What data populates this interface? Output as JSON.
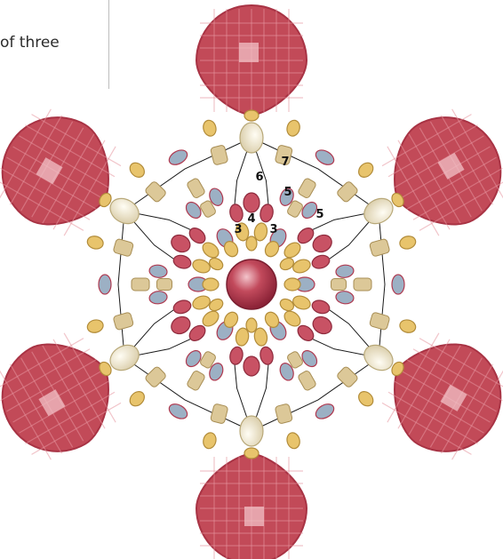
{
  "caption": "of three",
  "step_numbers": [
    {
      "id": "s7",
      "text": "7"
    },
    {
      "id": "s6",
      "text": "6"
    },
    {
      "id": "s5a",
      "text": "5"
    },
    {
      "id": "s5b",
      "text": "5"
    },
    {
      "id": "s4",
      "text": "4"
    },
    {
      "id": "s3a",
      "text": "3"
    },
    {
      "id": "s3b",
      "text": "3"
    }
  ],
  "colors": {
    "crystal": "#c24a58",
    "crystal_dark": "#a83344",
    "pearl_center": "#b8384d",
    "bead_gold": "#e8c46c",
    "bead_tan": "#dcc898",
    "bead_blue": "#9cb0c4",
    "bead_red": "#c85264",
    "bead_cream": "#efe7d0",
    "thread": "#1a1a1a"
  }
}
